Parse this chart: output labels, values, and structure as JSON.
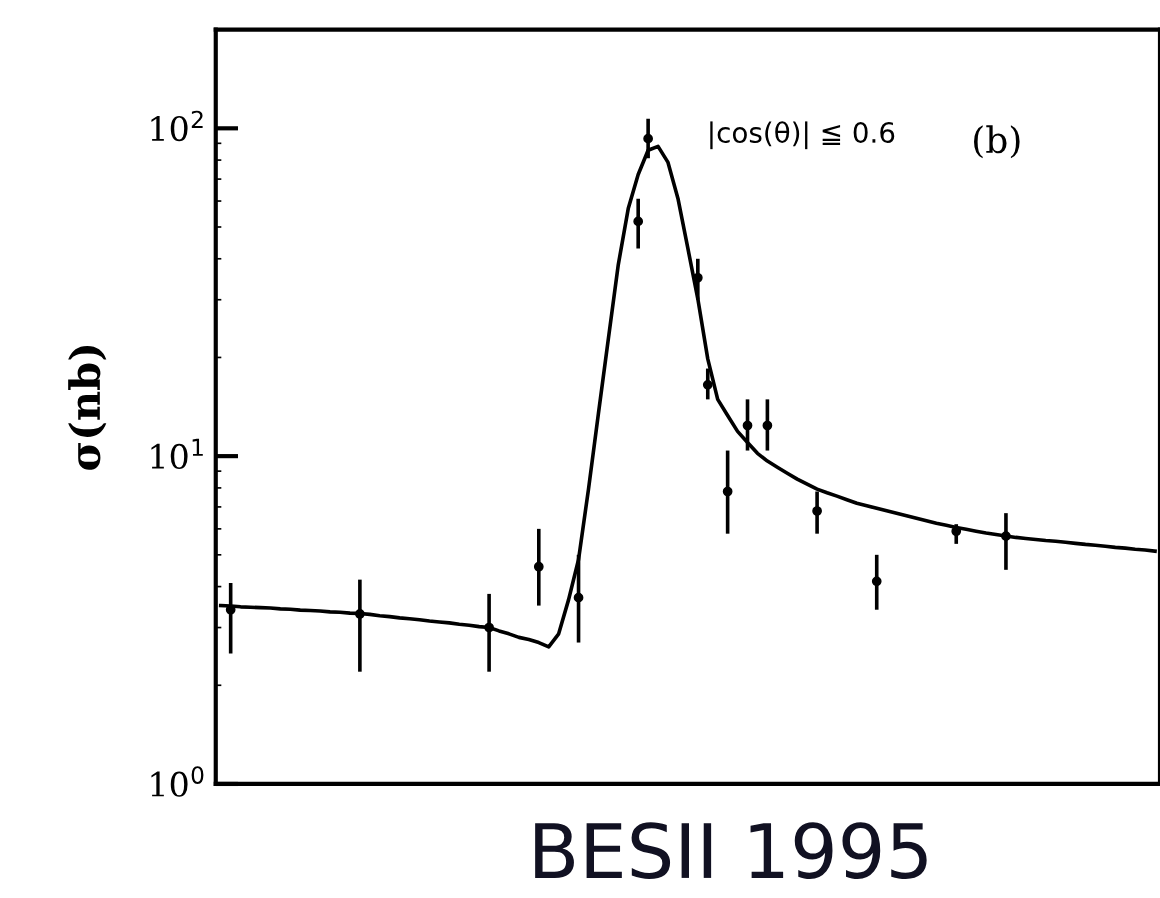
{
  "chart_data": {
    "type": "line",
    "ylabel": "σ(nb)",
    "log": true,
    "ylim": [
      1,
      200
    ],
    "yticks": [
      {
        "value": 1,
        "label": "10$^{0}$"
      },
      {
        "value": 10,
        "label": "10$^{1}$"
      },
      {
        "value": 100,
        "label": "10$^{2}$"
      }
    ],
    "annotations": [
      "|cos(θ)| ≦ 0.6",
      "(b)",
      "BESII 1995"
    ],
    "categories": [
      null,
      null,
      null,
      null,
      null,
      null,
      null,
      null,
      null,
      null,
      null,
      null,
      null,
      null,
      null,
      null,
      null,
      null,
      null,
      null,
      null,
      null,
      null,
      null,
      null,
      null,
      null,
      null,
      null,
      null,
      null,
      null,
      null,
      null,
      null,
      null,
      null,
      null,
      null,
      null,
      null,
      null,
      null,
      null,
      null,
      null,
      null,
      null,
      null,
      null,
      null,
      null,
      null,
      null,
      null,
      null,
      null,
      null,
      null,
      null,
      null,
      null,
      null,
      null,
      null,
      null,
      null,
      null,
      null,
      null,
      null,
      null,
      null,
      null,
      null,
      null,
      null,
      null,
      null,
      null,
      null,
      null,
      null,
      null,
      null,
      null,
      null,
      null,
      null,
      null,
      null,
      null,
      null,
      null,
      null
    ],
    "series": [
      {
        "type": "line",
        "color": "#000000",
        "values": [
          3.5,
          3.49,
          3.47,
          3.46,
          3.45,
          3.44,
          3.42,
          3.41,
          3.39,
          3.38,
          3.37,
          3.35,
          3.34,
          3.32,
          3.31,
          3.29,
          3.26,
          3.24,
          3.21,
          3.19,
          3.17,
          3.14,
          3.12,
          3.1,
          3.07,
          3.05,
          3.02,
          3.0,
          2.93,
          2.87,
          2.8,
          2.76,
          2.7,
          2.62,
          2.87,
          3.65,
          4.84,
          7.93,
          13.5,
          22.8,
          38.4,
          56.9,
          72.3,
          85.7,
          88.1,
          78.7,
          61.1,
          43.0,
          30.2,
          19.8,
          14.9,
          13.3,
          11.9,
          11.0,
          10.2,
          9.66,
          9.25,
          8.87,
          8.51,
          8.21,
          7.93,
          7.73,
          7.55,
          7.36,
          7.18,
          7.06,
          6.93,
          6.81,
          6.69,
          6.58,
          6.46,
          6.35,
          6.24,
          6.15,
          6.06,
          5.98,
          5.9,
          5.83,
          5.77,
          5.71,
          5.65,
          5.61,
          5.57,
          5.53,
          5.5,
          5.46,
          5.42,
          5.38,
          5.35,
          5.31,
          5.27,
          5.24,
          5.2,
          5.17,
          5.13
        ]
      },
      {
        "type": "scatter",
        "color": "#000000",
        "marker": "circle",
        "values": [
          null,
          3.4,
          null,
          null,
          null,
          null,
          null,
          null,
          null,
          null,
          null,
          null,
          null,
          null,
          3.3,
          null,
          null,
          null,
          null,
          null,
          null,
          null,
          null,
          null,
          null,
          null,
          null,
          3.0,
          null,
          null,
          null,
          null,
          4.6,
          null,
          null,
          null,
          3.7,
          null,
          null,
          null,
          null,
          null,
          52,
          93,
          null,
          null,
          null,
          null,
          35,
          16.5,
          null,
          7.8,
          null,
          12.4,
          null,
          12.4,
          null,
          null,
          null,
          null,
          6.8,
          null,
          null,
          null,
          null,
          null,
          4.15,
          null,
          null,
          null,
          null,
          null,
          null,
          null,
          5.9,
          null,
          null,
          null,
          null,
          5.7,
          null,
          null,
          null,
          null,
          null,
          null,
          null,
          null,
          null,
          null,
          null,
          null,
          null,
          null,
          null
        ],
        "errors": [
          null,
          [
            2.5,
            4.1
          ],
          null,
          null,
          null,
          null,
          null,
          null,
          null,
          null,
          null,
          null,
          null,
          null,
          [
            2.2,
            4.2
          ],
          null,
          null,
          null,
          null,
          null,
          null,
          null,
          null,
          null,
          null,
          null,
          null,
          [
            2.2,
            3.8
          ],
          null,
          null,
          null,
          null,
          [
            3.5,
            6.0
          ],
          null,
          null,
          null,
          [
            2.7,
            5.0
          ],
          null,
          null,
          null,
          null,
          null,
          [
            43,
            61
          ],
          [
            81,
            107
          ],
          null,
          null,
          null,
          null,
          [
            30,
            40
          ],
          [
            14.9,
            18.5
          ],
          null,
          [
            5.8,
            10.4
          ],
          null,
          [
            10.4,
            14.9
          ],
          null,
          [
            10.4,
            14.9
          ],
          null,
          null,
          null,
          null,
          [
            5.8,
            7.8
          ],
          null,
          null,
          null,
          null,
          null,
          [
            3.4,
            5.0
          ],
          null,
          null,
          null,
          null,
          null,
          null,
          null,
          [
            5.4,
            6.2
          ],
          null,
          null,
          null,
          null,
          [
            4.5,
            6.7
          ],
          null,
          null,
          null,
          null,
          null,
          null,
          null,
          null,
          null,
          null,
          null,
          null,
          null,
          null,
          null
        ]
      }
    ]
  }
}
